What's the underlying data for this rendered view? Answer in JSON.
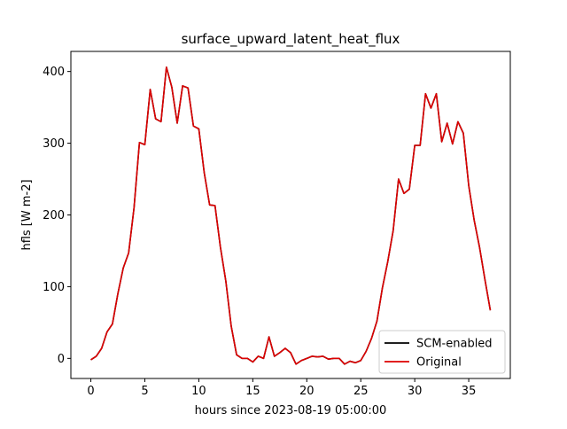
{
  "chart_data": {
    "type": "line",
    "title": "surface_upward_latent_heat_flux",
    "xlabel": "hours since 2023-08-19 05:00:00",
    "ylabel": "hfls [W m-2]",
    "xlim": [
      -1.85,
      38.85
    ],
    "ylim": [
      -28,
      428
    ],
    "xticks": [
      0,
      5,
      10,
      15,
      20,
      25,
      30,
      35
    ],
    "yticks": [
      0,
      100,
      200,
      300,
      400
    ],
    "legend_position": "lower right",
    "grid": false,
    "x": [
      0,
      0.5,
      1,
      1.5,
      2,
      2.5,
      3,
      3.5,
      4,
      4.5,
      5,
      5.5,
      6,
      6.5,
      7,
      7.5,
      8,
      8.5,
      9,
      9.5,
      10,
      10.5,
      11,
      11.5,
      12,
      12.5,
      13,
      13.5,
      14,
      14.5,
      15,
      15.5,
      16,
      16.5,
      17,
      17.5,
      18,
      18.5,
      19,
      19.5,
      20,
      20.5,
      21,
      21.5,
      22,
      22.5,
      23,
      23.5,
      24,
      24.5,
      25,
      25.5,
      26,
      26.5,
      27,
      27.5,
      28,
      28.5,
      29,
      29.5,
      30,
      30.5,
      31,
      31.5,
      32,
      32.5,
      33,
      33.5,
      34,
      34.5,
      35,
      35.5,
      36,
      36.5,
      37
    ],
    "series": [
      {
        "name": "SCM-enabled",
        "color": "#000000",
        "values": [
          -2,
          3,
          14,
          37,
          48,
          90,
          126,
          147,
          210,
          301,
          298,
          375,
          334,
          330,
          406,
          378,
          328,
          380,
          377,
          324,
          320,
          259,
          214,
          213,
          155,
          108,
          45,
          5,
          0,
          0,
          -5,
          3,
          0,
          30,
          3,
          8,
          14,
          8,
          -8,
          -3,
          0,
          3,
          2,
          3,
          -1,
          0,
          0,
          -8,
          -4,
          -6,
          -3,
          10,
          28,
          52,
          98,
          135,
          178,
          250,
          230,
          236,
          297,
          297,
          369,
          349,
          369,
          302,
          328,
          299,
          330,
          314,
          241,
          193,
          155,
          110,
          67
        ]
      },
      {
        "name": "Original",
        "color": "#dd0000",
        "values": [
          -2,
          3,
          14,
          37,
          48,
          90,
          126,
          147,
          210,
          301,
          298,
          375,
          334,
          330,
          406,
          378,
          328,
          380,
          377,
          324,
          320,
          259,
          214,
          213,
          155,
          108,
          45,
          5,
          0,
          0,
          -5,
          3,
          0,
          30,
          3,
          8,
          14,
          8,
          -8,
          -3,
          0,
          3,
          2,
          3,
          -1,
          0,
          0,
          -8,
          -4,
          -6,
          -3,
          10,
          28,
          52,
          98,
          135,
          178,
          250,
          230,
          236,
          297,
          297,
          369,
          349,
          369,
          302,
          328,
          299,
          330,
          314,
          241,
          193,
          155,
          110,
          67
        ]
      }
    ]
  }
}
